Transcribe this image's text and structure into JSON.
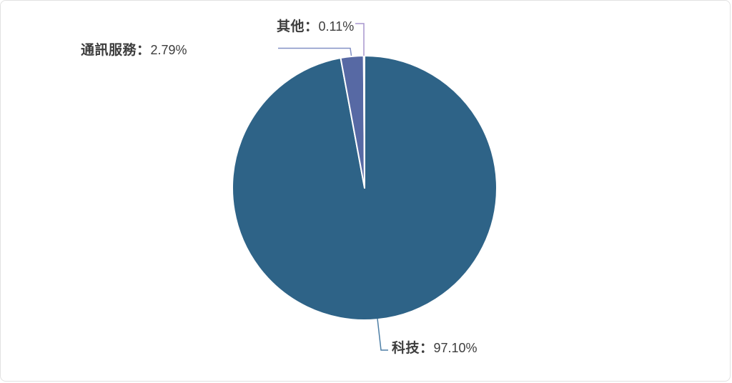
{
  "frame": {
    "background": "#ffffff",
    "border_color": "#e2e2e2"
  },
  "text_color": "#3d3d3d",
  "chart_data": {
    "type": "pie",
    "title": "",
    "legend_position": "none",
    "start_angle_deg": 0,
    "direction": "clockwise",
    "unit": "%",
    "categories": [
      "科技",
      "通訊服務",
      "其他"
    ],
    "values": [
      97.1,
      2.79,
      0.11
    ],
    "slices": [
      {
        "name": "科技",
        "value": 97.1,
        "label_name": "科技：",
        "label_value": "97.10%",
        "full_label": "科技：97.10%",
        "color": "#2E6387",
        "leader_color": "#4E7FA6"
      },
      {
        "name": "通訊服務",
        "value": 2.79,
        "label_name": "通訊服務：",
        "label_value": "2.79%",
        "full_label": "通訊服務：2.79%",
        "color": "#5769A4",
        "leader_color": "#8290C5"
      },
      {
        "name": "其他",
        "value": 0.11,
        "label_name": "其他：",
        "label_value": "0.11%",
        "full_label": "其他：0.11%",
        "color": "#9C8CC6",
        "leader_color": "#A796CE"
      }
    ]
  }
}
